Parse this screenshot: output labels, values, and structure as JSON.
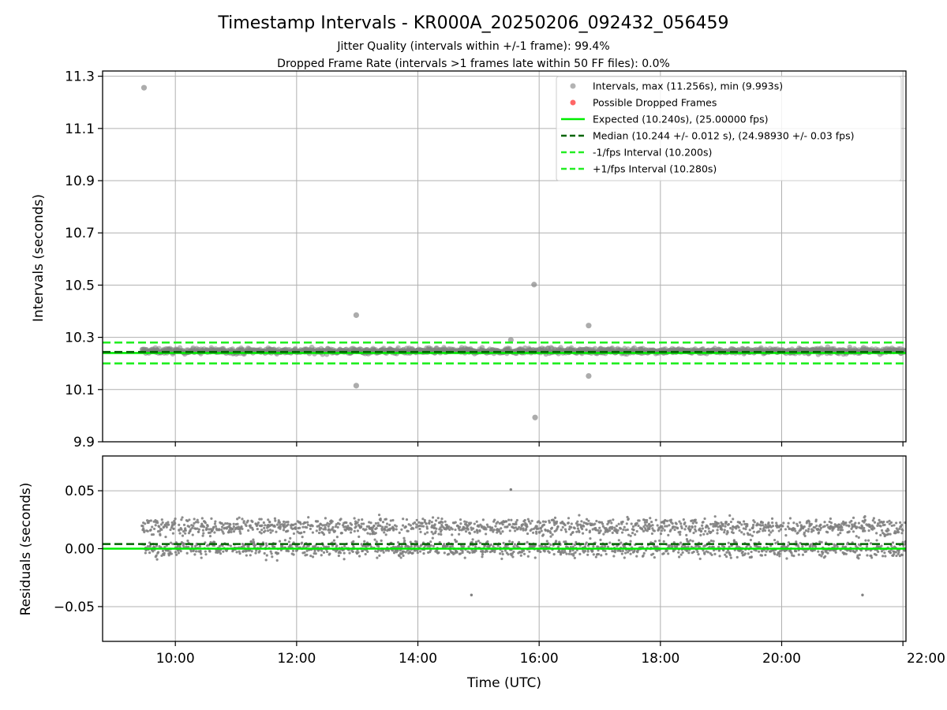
{
  "chart_data": [
    {
      "type": "scatter",
      "title": "Timestamp Intervals - KR000A_20250206_092432_056459",
      "subtitle_lines": [
        "Jitter Quality (intervals within +/-1 frame): 99.4%",
        "Dropped Frame Rate (intervals >1 frames late within 50 FF files): 0.0%"
      ],
      "ylabel": "Intervals (seconds)",
      "ylim": [
        9.9,
        11.32
      ],
      "yticks": [
        "9.9",
        "10.1",
        "10.3",
        "10.5",
        "10.7",
        "10.9",
        "11.1",
        "11.3"
      ],
      "xlim_hours": [
        8.8,
        22.05
      ],
      "xticks": [
        "10:00",
        "12:00",
        "14:00",
        "16:00",
        "18:00",
        "20:00",
        "22:00"
      ],
      "grid": true,
      "legend_position": "top-right",
      "legend": [
        "Intervals, max (11.256s), min (9.993s)",
        "Possible Dropped Frames",
        "Expected (10.240s), (25.00000 fps)",
        "Median (10.244 +/- 0.012 s), (24.98930 +/- 0.03 fps)",
        "-1/fps Interval (10.200s)",
        "+1/fps Interval (10.280s)"
      ],
      "reference_lines": {
        "expected": 10.24,
        "median": 10.244,
        "minus_one_fps": 10.2,
        "plus_one_fps": 10.28
      },
      "data_range_hours": [
        9.45,
        22.05
      ],
      "typical_band": [
        10.215,
        10.28
      ],
      "outliers": [
        {
          "x": "09:29",
          "y": 11.256
        },
        {
          "x": "12:59",
          "y": 10.385
        },
        {
          "x": "12:59",
          "y": 10.115
        },
        {
          "x": "15:55",
          "y": 10.502
        },
        {
          "x": "15:56",
          "y": 9.993
        },
        {
          "x": "16:49",
          "y": 10.345
        },
        {
          "x": "16:49",
          "y": 10.152
        },
        {
          "x": "15:32",
          "y": 10.29
        }
      ]
    },
    {
      "type": "scatter",
      "ylabel": "Residuals (seconds)",
      "xlabel": "Time (UTC)",
      "ylim": [
        -0.08,
        0.08
      ],
      "yticks": [
        "−0.05",
        "0.00",
        "0.05"
      ],
      "xticks": [
        "10:00",
        "12:00",
        "14:00",
        "16:00",
        "18:00",
        "20:00",
        "22:00"
      ],
      "grid": true,
      "reference_lines": {
        "expected": 0.0,
        "median": 0.004
      },
      "typical_band": [
        -0.025,
        0.04
      ],
      "outliers": [
        {
          "x": "15:32",
          "y": 0.051
        },
        {
          "x": "21:20",
          "y": -0.04
        },
        {
          "x": "14:53",
          "y": -0.04
        }
      ]
    }
  ],
  "colors": {
    "points": "#808080",
    "dropped": "#ff0000",
    "expected": "#00ee00",
    "median": "#006400",
    "fps_lines": "#22ee22",
    "grid": "#b0b0b0"
  }
}
